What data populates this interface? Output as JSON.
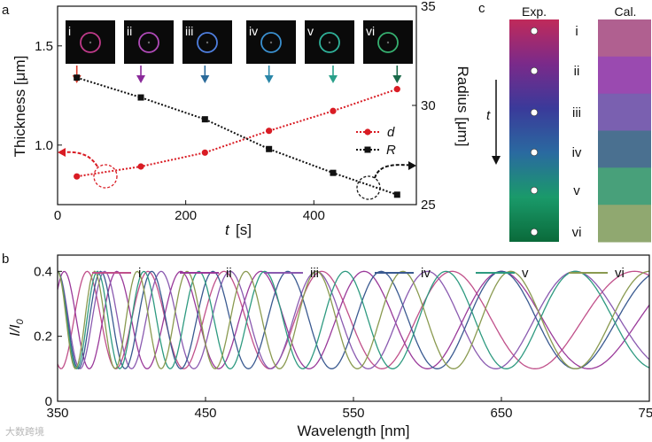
{
  "panels": {
    "a": {
      "label": "a",
      "chart_data": {
        "type": "scatter",
        "xlabel_var": "t",
        "xlabel_unit": "[s]",
        "ylabel_left": "Thickness [μm]",
        "ylabel_right": "Radius [μm]",
        "xlim": [
          0,
          560
        ],
        "ylim_left": [
          0.7,
          1.7
        ],
        "ylim_right": [
          25,
          35
        ],
        "x_ticks": [
          0,
          200,
          400
        ],
        "y_ticks_left": [
          1.0,
          1.5
        ],
        "y_tick_labels_left": [
          "1.0",
          "1.5"
        ],
        "y_ticks_right": [
          25,
          30,
          35
        ],
        "series": [
          {
            "name": "d",
            "axis": "left",
            "color": "#d91c24",
            "marker": "circle",
            "x": [
              30,
              130,
              230,
              330,
              430,
              530
            ],
            "y": [
              0.842,
              0.892,
              0.962,
              1.072,
              1.172,
              1.282
            ]
          },
          {
            "name": "R",
            "axis": "right",
            "color": "#111111",
            "marker": "square",
            "x": [
              30,
              130,
              230,
              330,
              430,
              530
            ],
            "y": [
              31.4,
              30.4,
              29.3,
              27.8,
              26.6,
              25.5
            ]
          }
        ],
        "insets": [
          "i",
          "ii",
          "iii",
          "iv",
          "v",
          "vi"
        ],
        "inset_ring_colors": [
          "#c03a8a",
          "#b04ab8",
          "#4f7fe0",
          "#3a90d0",
          "#2fb29a",
          "#36b070"
        ],
        "arrow_colors": [
          "#d93a2a",
          "#8a2a9a",
          "#2a6a9a",
          "#2a86a8",
          "#2aa08a",
          "#1a6a4a"
        ]
      }
    },
    "b": {
      "label": "b",
      "chart_data": {
        "type": "line",
        "xlabel": "Wavelength [nm]",
        "ylabel_main": "I",
        "ylabel_sub": "0",
        "xlim": [
          350,
          750
        ],
        "ylim": [
          0,
          0.45
        ],
        "x_ticks": [
          350,
          450,
          550,
          650,
          750
        ],
        "y_ticks": [
          0,
          0.2,
          0.4
        ],
        "y_tick_labels": [
          "0",
          "0.2",
          "0.4"
        ],
        "series": [
          {
            "name": "i",
            "color": "#c0508a",
            "opd": 3700,
            "offset": 0.25,
            "amp": 0.15
          },
          {
            "name": "ii",
            "color": "#9a3a9a",
            "opd": 3900,
            "offset": 0.25,
            "amp": 0.15
          },
          {
            "name": "iii",
            "color": "#8a5ab0",
            "opd": 4200,
            "offset": 0.25,
            "amp": 0.15
          },
          {
            "name": "iv",
            "color": "#3a5a90",
            "opd": 4550,
            "offset": 0.25,
            "amp": 0.15
          },
          {
            "name": "v",
            "color": "#2e9a80",
            "opd": 4900,
            "offset": 0.25,
            "amp": 0.15
          },
          {
            "name": "vi",
            "color": "#8a9a50",
            "opd": 5250,
            "offset": 0.25,
            "amp": 0.15
          }
        ]
      }
    },
    "c": {
      "label": "c",
      "exp_label": "Exp.",
      "cal_label": "Cal.",
      "time_label": "t",
      "rows": [
        {
          "label": "i",
          "exp_color": "#c02a5a",
          "cal_color": "#b06090"
        },
        {
          "label": "ii",
          "exp_color": "#7a2a8a",
          "cal_color": "#9a4ab0"
        },
        {
          "label": "iii",
          "exp_color": "#3a3a9a",
          "cal_color": "#7a60b0"
        },
        {
          "label": "iv",
          "exp_color": "#2a6aa0",
          "cal_color": "#4a7090"
        },
        {
          "label": "v",
          "exp_color": "#1a9a6a",
          "cal_color": "#48a07a"
        },
        {
          "label": "vi",
          "exp_color": "#0a6a3a",
          "cal_color": "#90a870"
        }
      ]
    }
  },
  "watermark": "大数跨境"
}
